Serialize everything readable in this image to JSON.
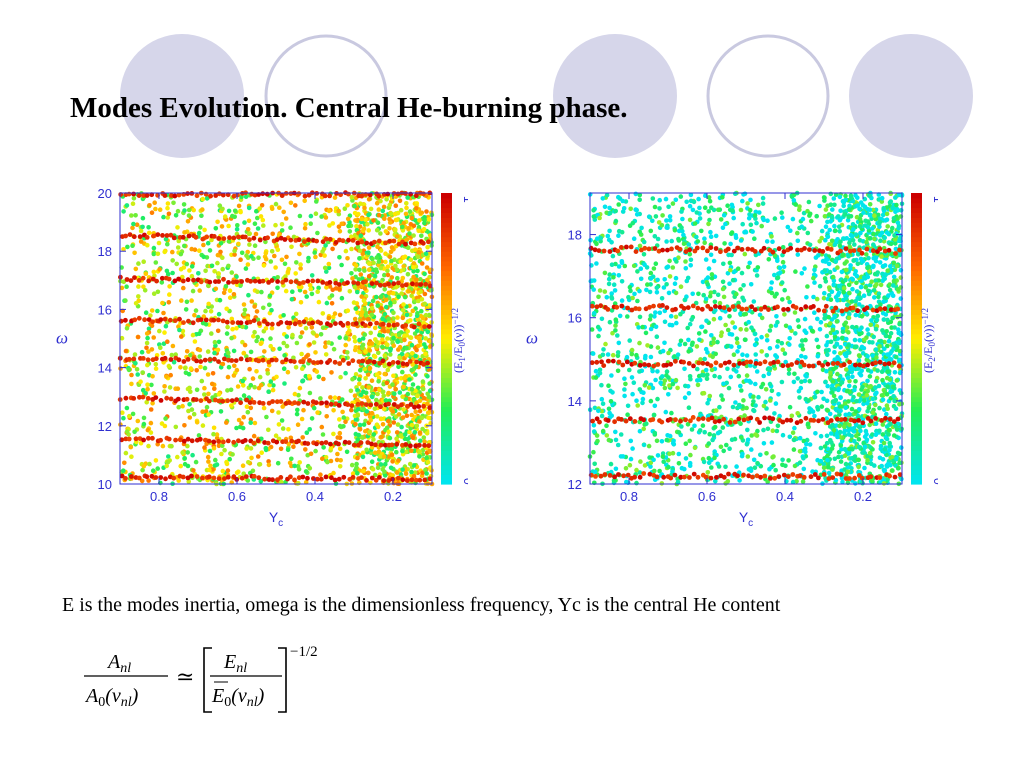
{
  "title": "Modes Evolution. Central He-burning phase.",
  "caption": "E is the modes inertia, omega is the dimensionless frequency, Yc is the central He content",
  "formula": {
    "lhs_num": "A",
    "lhs_num_sub": "nl",
    "lhs_den": "A",
    "lhs_den_sub0": "0",
    "lhs_den_arg": "(ν",
    "lhs_den_arg_sub": "nl",
    "lhs_den_close": ")",
    "relation": "≃",
    "rhs_num": "E",
    "rhs_num_sub": "nl",
    "rhs_den": "E",
    "rhs_den_sub0": "0",
    "rhs_den_arg": "(ν",
    "rhs_den_arg_sub": "nl",
    "rhs_den_close": ")",
    "exponent": "−1/2"
  },
  "colors": {
    "decor_fill": "#d6d6ea",
    "decor_ring": "#c9c9e0",
    "axis": "#2f2fd0",
    "scale": [
      "#00e5ee",
      "#22ee55",
      "#ffee00",
      "#ff6600",
      "#cc0000"
    ]
  },
  "chart_data": [
    {
      "type": "scatter",
      "xlabel": "Y",
      "xlabel_sub": "c",
      "ylabel": "ω",
      "xlim": [
        0.9,
        0.1
      ],
      "ylim": [
        10,
        20
      ],
      "xticks": [
        0.8,
        0.6,
        0.4,
        0.2
      ],
      "xtick_labels": [
        "0.8",
        "0.6",
        "0.4",
        "0.2"
      ],
      "yticks": [
        10,
        12,
        14,
        16,
        18,
        20
      ],
      "ytick_labels": [
        "10",
        "12",
        "14",
        "16",
        "18",
        "20"
      ],
      "colorbar": {
        "label_pre": "(E",
        "label_sub": "1",
        "label_mid": "/E",
        "label_sub2": "0",
        "label_post": "(ν))",
        "label_sup": "−1/2",
        "min_label": "0",
        "max_label": "1"
      },
      "mode_tracks": [
        {
          "omega": 19.95,
          "slope": 0.0
        },
        {
          "omega": 18.55,
          "slope": 0.6
        },
        {
          "omega": 17.05,
          "slope": 0.4
        },
        {
          "omega": 15.65,
          "slope": 0.45
        },
        {
          "omega": 14.3,
          "slope": 0.3
        },
        {
          "omega": 12.95,
          "slope": 0.6
        },
        {
          "omega": 11.55,
          "slope": 0.45
        },
        {
          "omega": 10.25,
          "slope": 0.2
        }
      ],
      "background_mean": 0.45,
      "dense_region_x": [
        0.3,
        0.1
      ]
    },
    {
      "type": "scatter",
      "xlabel": "Y",
      "xlabel_sub": "c",
      "ylabel": "ω",
      "xlim": [
        0.9,
        0.1
      ],
      "ylim": [
        12,
        19
      ],
      "xticks": [
        0.8,
        0.6,
        0.4,
        0.2
      ],
      "xtick_labels": [
        "0.8",
        "0.6",
        "0.4",
        "0.2"
      ],
      "yticks": [
        12,
        14,
        16,
        18
      ],
      "ytick_labels": [
        "12",
        "14",
        "16",
        "18"
      ],
      "colorbar": {
        "label_pre": "(E",
        "label_sub": "2",
        "label_mid": "/E",
        "label_sub2": "0",
        "label_post": "(ν))",
        "label_sup": "−1/2",
        "min_label": "0",
        "max_label": "1"
      },
      "mode_tracks": [
        {
          "omega": 17.65,
          "slope": 0.1
        },
        {
          "omega": 16.25,
          "slope": 0.1
        },
        {
          "omega": 14.9,
          "slope": 0.05
        },
        {
          "omega": 13.55,
          "slope": 0.05
        },
        {
          "omega": 12.2,
          "slope": 0.05
        }
      ],
      "background_mean": 0.12,
      "dense_region_x": [
        0.3,
        0.1
      ]
    }
  ]
}
